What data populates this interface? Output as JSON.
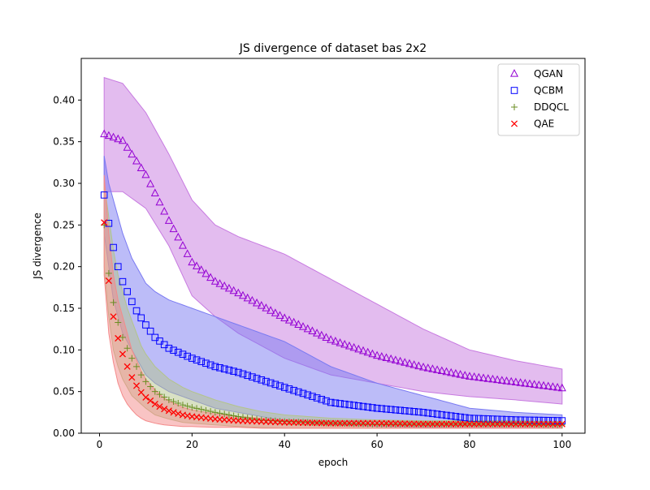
{
  "chart_data": {
    "type": "scatter",
    "title": "JS divergence of dataset bas 2x2",
    "xlabel": "epoch",
    "ylabel": "JS divergence",
    "xlim": [
      -3.95,
      104.95
    ],
    "ylim": [
      0,
      0.45
    ],
    "x_ticks": [
      0,
      20,
      40,
      60,
      80,
      100
    ],
    "y_ticks": [
      0.0,
      0.05,
      0.1,
      0.15,
      0.2,
      0.25,
      0.3,
      0.35,
      0.4
    ],
    "grid": false,
    "legend_position": "upper-right",
    "series": [
      {
        "name": "QGAN",
        "marker": "triangle",
        "color": "#9400d3",
        "band_color": "#c77ae0",
        "x": [
          1,
          5,
          10,
          15,
          20,
          25,
          30,
          40,
          50,
          60,
          70,
          80,
          90,
          100
        ],
        "mean": [
          0.359,
          0.351,
          0.31,
          0.255,
          0.205,
          0.182,
          0.168,
          0.138,
          0.112,
          0.093,
          0.079,
          0.068,
          0.061,
          0.054
        ],
        "upper": [
          0.427,
          0.42,
          0.385,
          0.335,
          0.28,
          0.25,
          0.236,
          0.215,
          0.185,
          0.155,
          0.125,
          0.1,
          0.087,
          0.077
        ],
        "lower": [
          0.29,
          0.29,
          0.27,
          0.225,
          0.165,
          0.14,
          0.12,
          0.09,
          0.07,
          0.06,
          0.05,
          0.044,
          0.04,
          0.035
        ]
      },
      {
        "name": "QCBM",
        "marker": "square",
        "color": "#0000ff",
        "band_color": "#7a7af2",
        "x": [
          1,
          2,
          3,
          4,
          5,
          6,
          7,
          8,
          10,
          12,
          15,
          20,
          25,
          30,
          40,
          50,
          60,
          70,
          80,
          90,
          100
        ],
        "mean": [
          0.286,
          0.252,
          0.223,
          0.2,
          0.182,
          0.17,
          0.158,
          0.147,
          0.13,
          0.115,
          0.102,
          0.09,
          0.08,
          0.073,
          0.055,
          0.037,
          0.03,
          0.025,
          0.018,
          0.016,
          0.015
        ],
        "upper": [
          0.333,
          0.3,
          0.28,
          0.26,
          0.24,
          0.225,
          0.21,
          0.2,
          0.18,
          0.17,
          0.16,
          0.15,
          0.14,
          0.13,
          0.11,
          0.08,
          0.06,
          0.045,
          0.03,
          0.025,
          0.022
        ],
        "lower": [
          0.24,
          0.2,
          0.16,
          0.14,
          0.12,
          0.11,
          0.1,
          0.09,
          0.07,
          0.06,
          0.05,
          0.04,
          0.03,
          0.025,
          0.015,
          0.01,
          0.008,
          0.007,
          0.006,
          0.006,
          0.006
        ]
      },
      {
        "name": "DDQCL",
        "marker": "plus",
        "color": "#6b8e23",
        "band_color": "#b3c48a",
        "x": [
          1,
          2,
          3,
          4,
          5,
          6,
          7,
          8,
          9,
          10,
          12,
          15,
          18,
          20,
          25,
          30,
          35,
          40,
          50,
          60,
          70,
          80,
          90,
          100
        ],
        "mean": [
          0.25,
          0.192,
          0.157,
          0.133,
          0.115,
          0.102,
          0.09,
          0.08,
          0.07,
          0.062,
          0.05,
          0.04,
          0.034,
          0.031,
          0.025,
          0.02,
          0.016,
          0.014,
          0.012,
          0.011,
          0.011,
          0.011,
          0.011,
          0.01
        ],
        "upper": [
          0.3,
          0.26,
          0.22,
          0.19,
          0.17,
          0.15,
          0.135,
          0.12,
          0.105,
          0.095,
          0.08,
          0.065,
          0.055,
          0.05,
          0.04,
          0.032,
          0.026,
          0.022,
          0.018,
          0.016,
          0.015,
          0.015,
          0.015,
          0.014
        ],
        "lower": [
          0.2,
          0.14,
          0.1,
          0.08,
          0.065,
          0.055,
          0.045,
          0.04,
          0.035,
          0.03,
          0.022,
          0.017,
          0.013,
          0.012,
          0.01,
          0.008,
          0.007,
          0.006,
          0.006,
          0.006,
          0.006,
          0.006,
          0.006,
          0.006
        ]
      },
      {
        "name": "QAE",
        "marker": "x",
        "color": "#ff0000",
        "band_color": "#f48a8a",
        "x": [
          1,
          2,
          3,
          4,
          5,
          6,
          7,
          8,
          9,
          10,
          12,
          14,
          16,
          18,
          20,
          25,
          30,
          35,
          40,
          50,
          60,
          70,
          80,
          90,
          100
        ],
        "mean": [
          0.253,
          0.183,
          0.14,
          0.114,
          0.095,
          0.08,
          0.067,
          0.057,
          0.049,
          0.043,
          0.035,
          0.029,
          0.025,
          0.022,
          0.02,
          0.017,
          0.015,
          0.014,
          0.013,
          0.012,
          0.012,
          0.011,
          0.011,
          0.011,
          0.011
        ],
        "upper": [
          0.31,
          0.24,
          0.19,
          0.16,
          0.14,
          0.12,
          0.1,
          0.088,
          0.075,
          0.065,
          0.052,
          0.042,
          0.036,
          0.031,
          0.028,
          0.023,
          0.02,
          0.018,
          0.016,
          0.015,
          0.015,
          0.014,
          0.014,
          0.014,
          0.014
        ],
        "lower": [
          0.19,
          0.12,
          0.085,
          0.06,
          0.045,
          0.035,
          0.028,
          0.022,
          0.018,
          0.015,
          0.012,
          0.01,
          0.009,
          0.008,
          0.008,
          0.007,
          0.007,
          0.006,
          0.006,
          0.006,
          0.006,
          0.006,
          0.006,
          0.006,
          0.006
        ]
      }
    ]
  }
}
